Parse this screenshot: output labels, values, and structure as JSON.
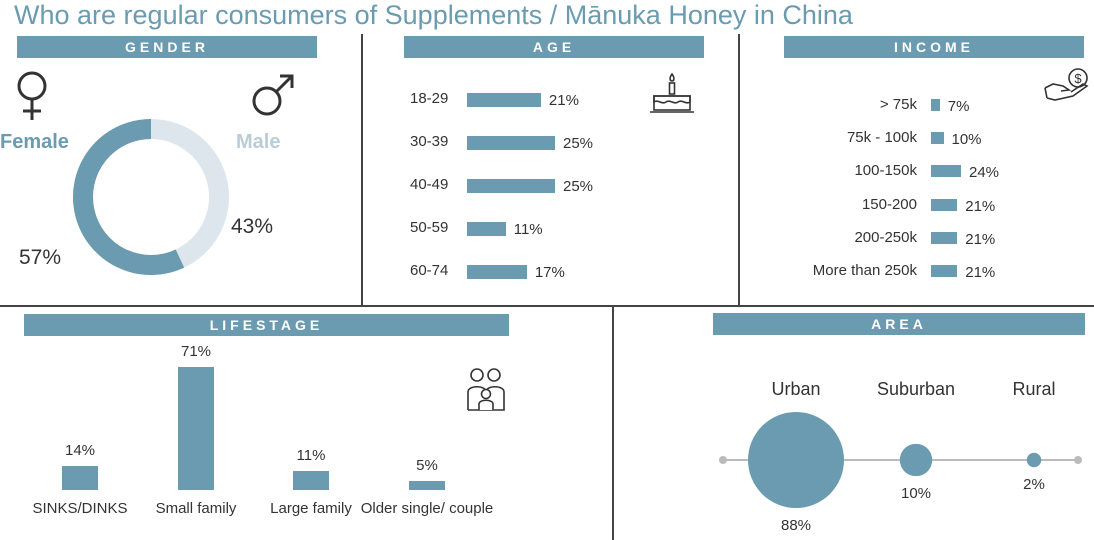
{
  "title": "Who are regular consumers of Supplements / Mānuka Honey in China",
  "colors": {
    "accent": "#6a9bb0",
    "light": "#dde6ec",
    "grey": "#bbbbbb"
  },
  "panels": {
    "gender": "GENDER",
    "age": "AGE",
    "income": "INCOME",
    "lifestage": "LIFESTAGE",
    "area": "AREA"
  },
  "icons": {
    "female": "female-symbol-icon",
    "male": "male-symbol-icon",
    "cake": "birthday-cake-icon",
    "money": "money-hand-icon",
    "family": "family-icon"
  },
  "chart_data": [
    {
      "type": "pie",
      "panel": "gender",
      "categories": [
        "Female",
        "Male"
      ],
      "values": [
        57,
        43
      ],
      "value_labels": [
        "57%",
        "43%"
      ]
    },
    {
      "type": "bar",
      "panel": "age",
      "orientation": "horizontal",
      "categories": [
        "18-29",
        "30-39",
        "40-49",
        "50-59",
        "60-74"
      ],
      "values": [
        21,
        25,
        25,
        11,
        17
      ],
      "value_labels": [
        "21%",
        "25%",
        "25%",
        "11%",
        "17%"
      ]
    },
    {
      "type": "bar",
      "panel": "income",
      "orientation": "horizontal",
      "categories": [
        "> 75k",
        "75k - 100k",
        "100-150k",
        "150-200",
        "200-250k",
        "More than 250k"
      ],
      "values": [
        7,
        10,
        24,
        21,
        21,
        21
      ],
      "value_labels": [
        "7%",
        "10%",
        "24%",
        "21%",
        "21%",
        "21%"
      ]
    },
    {
      "type": "bar",
      "panel": "lifestage",
      "orientation": "vertical",
      "categories": [
        "SINKS/DINKS",
        "Small family",
        "Large family",
        "Older single/ couple"
      ],
      "values": [
        14,
        71,
        11,
        5
      ],
      "value_labels": [
        "14%",
        "71%",
        "11%",
        "5%"
      ]
    },
    {
      "type": "scatter",
      "panel": "area",
      "categories": [
        "Urban",
        "Suburban",
        "Rural"
      ],
      "values": [
        88,
        10,
        2
      ],
      "value_labels": [
        "88%",
        "10%",
        "2%"
      ]
    }
  ]
}
